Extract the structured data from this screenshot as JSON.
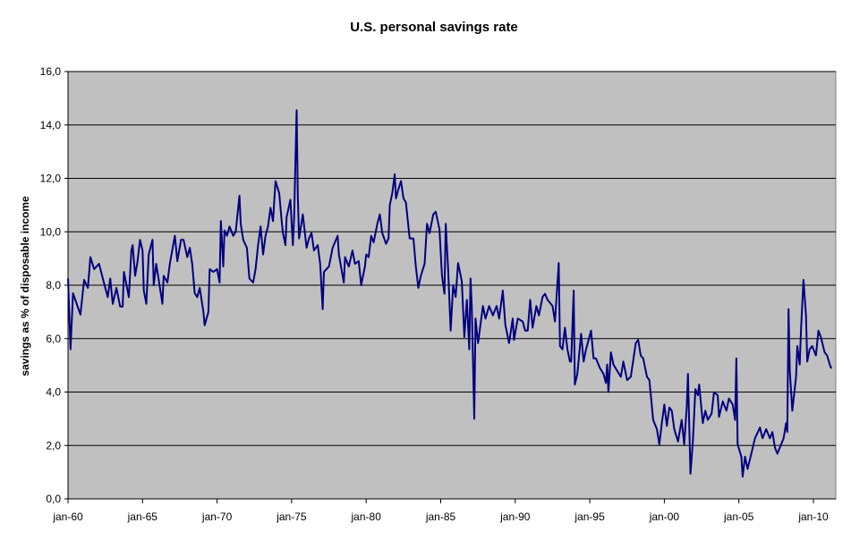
{
  "chart_data": {
    "type": "line",
    "title": "U.S. personal savings rate",
    "xlabel": "",
    "ylabel": "savings as %  of disposable income",
    "ylim": [
      0,
      16
    ],
    "xlim": [
      "1960-01",
      "2011-05"
    ],
    "y_ticks": [
      {
        "value": 0,
        "label": "0,0"
      },
      {
        "value": 2,
        "label": "2,0"
      },
      {
        "value": 4,
        "label": "4,0"
      },
      {
        "value": 6,
        "label": "6,0"
      },
      {
        "value": 8,
        "label": "8,0"
      },
      {
        "value": 10,
        "label": "10,0"
      },
      {
        "value": 12,
        "label": "12,0"
      },
      {
        "value": 14,
        "label": "14,0"
      },
      {
        "value": 16,
        "label": "16,0"
      }
    ],
    "x_ticks": [
      {
        "date": "1960-01",
        "label": "jan-60"
      },
      {
        "date": "1965-01",
        "label": "jan-65"
      },
      {
        "date": "1970-01",
        "label": "jan-70"
      },
      {
        "date": "1975-01",
        "label": "jan-75"
      },
      {
        "date": "1980-01",
        "label": "jan-80"
      },
      {
        "date": "1985-01",
        "label": "jan-85"
      },
      {
        "date": "1990-01",
        "label": "jan-90"
      },
      {
        "date": "1995-01",
        "label": "jan-95"
      },
      {
        "date": "2000-01",
        "label": "jan-00"
      },
      {
        "date": "2005-01",
        "label": "jan-05"
      },
      {
        "date": "2010-01",
        "label": "jan-10"
      }
    ],
    "grid": "horizontal",
    "legend": "none",
    "colors": {
      "line": "#000080",
      "plot_background": "#c0c0c0",
      "grid": "#000000"
    },
    "series": [
      {
        "points": [
          [
            "1960-01",
            8.25
          ],
          [
            "1960-03",
            5.6
          ],
          [
            "1960-05",
            7.7
          ],
          [
            "1960-11",
            6.9
          ],
          [
            "1961-02",
            8.2
          ],
          [
            "1961-05",
            7.9
          ],
          [
            "1961-07",
            9.05
          ],
          [
            "1961-10",
            8.6
          ],
          [
            "1962-02",
            8.8
          ],
          [
            "1962-05",
            8.25
          ],
          [
            "1962-09",
            7.55
          ],
          [
            "1962-11",
            8.25
          ],
          [
            "1963-01",
            7.3
          ],
          [
            "1963-04",
            7.9
          ],
          [
            "1963-07",
            7.2
          ],
          [
            "1963-09",
            7.2
          ],
          [
            "1963-10",
            8.5
          ],
          [
            "1964-02",
            7.55
          ],
          [
            "1964-04",
            9.3
          ],
          [
            "1964-05",
            9.5
          ],
          [
            "1964-07",
            8.35
          ],
          [
            "1964-09",
            8.9
          ],
          [
            "1964-11",
            9.7
          ],
          [
            "1965-01",
            9.3
          ],
          [
            "1965-02",
            7.8
          ],
          [
            "1965-04",
            7.3
          ],
          [
            "1965-06",
            9.15
          ],
          [
            "1965-09",
            9.7
          ],
          [
            "1965-10",
            8.0
          ],
          [
            "1965-12",
            8.8
          ],
          [
            "1966-05",
            7.3
          ],
          [
            "1966-06",
            8.35
          ],
          [
            "1966-09",
            8.1
          ],
          [
            "1966-11",
            8.8
          ],
          [
            "1967-03",
            9.85
          ],
          [
            "1967-05",
            8.9
          ],
          [
            "1967-08",
            9.7
          ],
          [
            "1967-10",
            9.7
          ],
          [
            "1968-01",
            9.05
          ],
          [
            "1968-03",
            9.4
          ],
          [
            "1968-05",
            8.8
          ],
          [
            "1968-07",
            7.7
          ],
          [
            "1968-09",
            7.55
          ],
          [
            "1968-11",
            7.9
          ],
          [
            "1969-02",
            7.0
          ],
          [
            "1969-03",
            6.5
          ],
          [
            "1969-06",
            7.0
          ],
          [
            "1969-07",
            8.6
          ],
          [
            "1969-10",
            8.5
          ],
          [
            "1970-01",
            8.6
          ],
          [
            "1970-03",
            8.1
          ],
          [
            "1970-04",
            10.4
          ],
          [
            "1970-06",
            8.7
          ],
          [
            "1970-07",
            10.05
          ],
          [
            "1970-09",
            9.85
          ],
          [
            "1970-11",
            10.2
          ],
          [
            "1971-02",
            9.85
          ],
          [
            "1971-04",
            10.0
          ],
          [
            "1971-07",
            11.35
          ],
          [
            "1971-08",
            10.3
          ],
          [
            "1971-10",
            9.7
          ],
          [
            "1972-01",
            9.4
          ],
          [
            "1972-03",
            8.25
          ],
          [
            "1972-06",
            8.1
          ],
          [
            "1972-08",
            8.6
          ],
          [
            "1972-10",
            9.5
          ],
          [
            "1972-12",
            10.2
          ],
          [
            "1973-02",
            9.15
          ],
          [
            "1973-04",
            9.85
          ],
          [
            "1973-06",
            10.2
          ],
          [
            "1973-08",
            10.9
          ],
          [
            "1973-10",
            10.4
          ],
          [
            "1973-12",
            11.9
          ],
          [
            "1974-03",
            11.45
          ],
          [
            "1974-05",
            10.4
          ],
          [
            "1974-06",
            9.95
          ],
          [
            "1974-08",
            9.5
          ],
          [
            "1974-09",
            10.55
          ],
          [
            "1974-12",
            11.2
          ],
          [
            "1975-02",
            9.5
          ],
          [
            "1975-03",
            10.55
          ],
          [
            "1975-05",
            14.55
          ],
          [
            "1975-06",
            11.35
          ],
          [
            "1975-07",
            9.75
          ],
          [
            "1975-10",
            10.65
          ],
          [
            "1976-01",
            9.4
          ],
          [
            "1976-03",
            9.75
          ],
          [
            "1976-05",
            9.95
          ],
          [
            "1976-07",
            9.3
          ],
          [
            "1976-10",
            9.5
          ],
          [
            "1976-12",
            8.8
          ],
          [
            "1977-02",
            7.1
          ],
          [
            "1977-03",
            8.5
          ],
          [
            "1977-07",
            8.7
          ],
          [
            "1977-10",
            9.4
          ],
          [
            "1978-02",
            9.85
          ],
          [
            "1978-03",
            9.15
          ],
          [
            "1978-07",
            8.1
          ],
          [
            "1978-08",
            9.05
          ],
          [
            "1978-11",
            8.7
          ],
          [
            "1979-02",
            9.3
          ],
          [
            "1979-04",
            8.8
          ],
          [
            "1979-07",
            8.9
          ],
          [
            "1979-09",
            8.0
          ],
          [
            "1979-12",
            8.7
          ],
          [
            "1980-01",
            9.15
          ],
          [
            "1980-03",
            9.05
          ],
          [
            "1980-05",
            9.85
          ],
          [
            "1980-07",
            9.6
          ],
          [
            "1980-10",
            10.3
          ],
          [
            "1980-12",
            10.65
          ],
          [
            "1981-02",
            9.95
          ],
          [
            "1981-05",
            9.55
          ],
          [
            "1981-07",
            9.75
          ],
          [
            "1981-08",
            11.0
          ],
          [
            "1981-10",
            11.45
          ],
          [
            "1981-12",
            12.15
          ],
          [
            "1982-01",
            11.25
          ],
          [
            "1982-03",
            11.6
          ],
          [
            "1982-05",
            11.9
          ],
          [
            "1982-07",
            11.25
          ],
          [
            "1982-09",
            11.1
          ],
          [
            "1982-12",
            9.75
          ],
          [
            "1983-03",
            9.75
          ],
          [
            "1983-05",
            8.7
          ],
          [
            "1983-07",
            7.9
          ],
          [
            "1983-09",
            8.35
          ],
          [
            "1983-12",
            8.8
          ],
          [
            "1984-02",
            10.3
          ],
          [
            "1984-04",
            9.95
          ],
          [
            "1984-07",
            10.65
          ],
          [
            "1984-09",
            10.75
          ],
          [
            "1984-12",
            10.1
          ],
          [
            "1985-02",
            8.37
          ],
          [
            "1985-04",
            7.68
          ],
          [
            "1985-05",
            10.3
          ],
          [
            "1985-07",
            8.6
          ],
          [
            "1985-09",
            6.3
          ],
          [
            "1985-11",
            8.0
          ],
          [
            "1986-01",
            7.56
          ],
          [
            "1986-03",
            8.83
          ],
          [
            "1986-06",
            8.14
          ],
          [
            "1986-08",
            6.06
          ],
          [
            "1986-10",
            7.45
          ],
          [
            "1986-12",
            5.6
          ],
          [
            "1987-01",
            8.25
          ],
          [
            "1987-02",
            7.22
          ],
          [
            "1987-04",
            3.0
          ],
          [
            "1987-05",
            6.75
          ],
          [
            "1987-07",
            5.83
          ],
          [
            "1987-11",
            7.22
          ],
          [
            "1988-01",
            6.75
          ],
          [
            "1988-04",
            7.22
          ],
          [
            "1988-07",
            6.87
          ],
          [
            "1988-10",
            7.22
          ],
          [
            "1988-12",
            6.75
          ],
          [
            "1989-03",
            7.8
          ],
          [
            "1989-05",
            6.52
          ],
          [
            "1989-08",
            5.83
          ],
          [
            "1989-11",
            6.75
          ],
          [
            "1989-12",
            5.95
          ],
          [
            "1990-03",
            6.75
          ],
          [
            "1990-07",
            6.64
          ],
          [
            "1990-09",
            6.3
          ],
          [
            "1990-11",
            6.3
          ],
          [
            "1991-01",
            7.45
          ],
          [
            "1991-03",
            6.41
          ],
          [
            "1991-06",
            7.22
          ],
          [
            "1991-08",
            6.87
          ],
          [
            "1991-11",
            7.56
          ],
          [
            "1992-01",
            7.68
          ],
          [
            "1992-03",
            7.45
          ],
          [
            "1992-07",
            7.22
          ],
          [
            "1992-09",
            6.64
          ],
          [
            "1992-12",
            8.83
          ],
          [
            "1993-01",
            5.72
          ],
          [
            "1993-03",
            5.6
          ],
          [
            "1993-05",
            6.41
          ],
          [
            "1993-07",
            5.6
          ],
          [
            "1993-09",
            5.14
          ],
          [
            "1993-10",
            5.14
          ],
          [
            "1993-12",
            7.8
          ],
          [
            "1994-01",
            4.28
          ],
          [
            "1994-03",
            4.68
          ],
          [
            "1994-06",
            6.18
          ],
          [
            "1994-08",
            5.14
          ],
          [
            "1994-10",
            5.6
          ],
          [
            "1995-02",
            6.3
          ],
          [
            "1995-04",
            5.26
          ],
          [
            "1995-06",
            5.26
          ],
          [
            "1995-09",
            4.91
          ],
          [
            "1995-12",
            4.68
          ],
          [
            "1996-02",
            4.34
          ],
          [
            "1996-03",
            5.03
          ],
          [
            "1996-04",
            4.0
          ],
          [
            "1996-06",
            5.49
          ],
          [
            "1996-08",
            5.03
          ],
          [
            "1996-11",
            4.8
          ],
          [
            "1997-02",
            4.57
          ],
          [
            "1997-04",
            5.14
          ],
          [
            "1997-07",
            4.45
          ],
          [
            "1997-10",
            4.57
          ],
          [
            "1998-02",
            5.83
          ],
          [
            "1998-04",
            5.95
          ],
          [
            "1998-06",
            5.37
          ],
          [
            "1998-08",
            5.26
          ],
          [
            "1998-11",
            4.57
          ],
          [
            "1999-01",
            4.45
          ],
          [
            "1999-04",
            2.96
          ],
          [
            "1999-07",
            2.61
          ],
          [
            "1999-09",
            2.04
          ],
          [
            "1999-11",
            2.84
          ],
          [
            "2000-01",
            3.53
          ],
          [
            "2000-03",
            2.73
          ],
          [
            "2000-05",
            3.42
          ],
          [
            "2000-07",
            3.3
          ],
          [
            "2000-09",
            2.61
          ],
          [
            "2000-12",
            2.15
          ],
          [
            "2001-03",
            2.96
          ],
          [
            "2001-05",
            2.04
          ],
          [
            "2001-07",
            3.42
          ],
          [
            "2001-08",
            4.68
          ],
          [
            "2001-10",
            0.94
          ],
          [
            "2001-12",
            2.15
          ],
          [
            "2002-02",
            4.11
          ],
          [
            "2002-04",
            3.88
          ],
          [
            "2002-05",
            4.28
          ],
          [
            "2002-08",
            2.84
          ],
          [
            "2002-10",
            3.3
          ],
          [
            "2002-12",
            2.96
          ],
          [
            "2003-03",
            3.19
          ],
          [
            "2003-05",
            3.99
          ],
          [
            "2003-08",
            3.88
          ],
          [
            "2003-09",
            3.07
          ],
          [
            "2003-12",
            3.65
          ],
          [
            "2004-03",
            3.3
          ],
          [
            "2004-05",
            3.76
          ],
          [
            "2004-08",
            3.53
          ],
          [
            "2004-10",
            2.96
          ],
          [
            "2004-11",
            5.26
          ],
          [
            "2004-12",
            2.04
          ],
          [
            "2005-03",
            1.58
          ],
          [
            "2005-04",
            0.83
          ],
          [
            "2005-06",
            1.58
          ],
          [
            "2005-08",
            1.12
          ],
          [
            "2005-11",
            1.69
          ],
          [
            "2006-02",
            2.27
          ],
          [
            "2006-06",
            2.67
          ],
          [
            "2006-08",
            2.27
          ],
          [
            "2006-11",
            2.61
          ],
          [
            "2007-02",
            2.27
          ],
          [
            "2007-04",
            2.5
          ],
          [
            "2007-06",
            1.92
          ],
          [
            "2007-08",
            1.69
          ],
          [
            "2007-11",
            2.04
          ],
          [
            "2008-01",
            2.27
          ],
          [
            "2008-03",
            2.84
          ],
          [
            "2008-04",
            2.5
          ],
          [
            "2008-05",
            7.1
          ],
          [
            "2008-06",
            4.8
          ],
          [
            "2008-08",
            3.3
          ],
          [
            "2008-11",
            4.57
          ],
          [
            "2008-12",
            5.72
          ],
          [
            "2009-02",
            5.03
          ],
          [
            "2009-03",
            6.3
          ],
          [
            "2009-05",
            8.2
          ],
          [
            "2009-07",
            6.87
          ],
          [
            "2009-08",
            5.14
          ],
          [
            "2009-10",
            5.6
          ],
          [
            "2009-12",
            5.72
          ],
          [
            "2010-03",
            5.37
          ],
          [
            "2010-05",
            6.3
          ],
          [
            "2010-07",
            6.06
          ],
          [
            "2010-10",
            5.49
          ],
          [
            "2010-12",
            5.37
          ],
          [
            "2011-03",
            4.91
          ],
          [
            "2011-04",
            4.91
          ]
        ]
      }
    ]
  }
}
